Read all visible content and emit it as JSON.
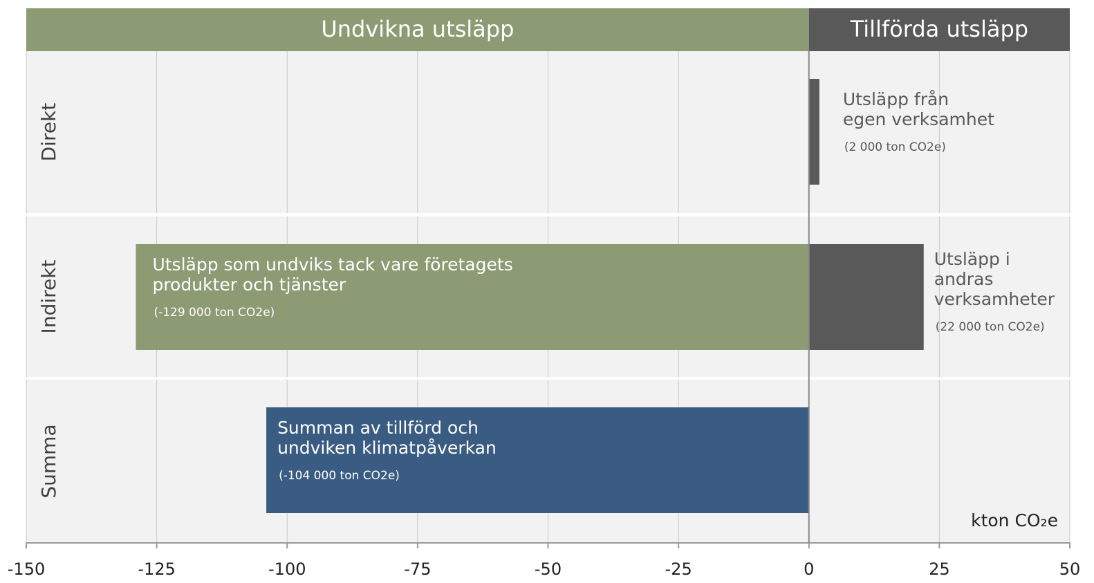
{
  "chart_data": {
    "type": "bar",
    "orientation": "horizontal",
    "headers": [
      "Undvikna utsläpp",
      "Tillförda utsläpp"
    ],
    "header_colors": [
      "#8c9b73",
      "#595959"
    ],
    "categories": [
      "Direkt",
      "Indirekt",
      "Summa"
    ],
    "series": [
      {
        "color": "#595959",
        "values": [
          2,
          22,
          null
        ],
        "annotations": [
          [
            "Utsläpp från",
            "egen verksamhet"
          ],
          [
            "Utsläpp i",
            "andras",
            "verksamheter"
          ],
          null
        ],
        "value_labels": [
          "(2 000 ton CO2e)",
          "(22 000 ton CO2e)",
          null
        ]
      },
      {
        "color": "#8c9b73",
        "values": [
          null,
          -129,
          null
        ],
        "annotations": [
          null,
          [
            "Utsläpp som undviks tack vare företagets",
            "produkter och tjänster"
          ],
          null
        ],
        "value_labels": [
          null,
          "(-129 000 ton CO2e)",
          null
        ]
      },
      {
        "color": "#3a5c82",
        "values": [
          null,
          null,
          -104
        ],
        "annotations": [
          null,
          null,
          [
            "Summan av tillförd och",
            "undviken klimatpåverkan"
          ]
        ],
        "value_labels": [
          null,
          null,
          "(-104 000 ton CO2e)"
        ]
      }
    ],
    "xlabel": "kton CO₂e",
    "xlim": [
      -150,
      50
    ],
    "xticks": [
      -150,
      -125,
      -100,
      -75,
      -50,
      -25,
      0,
      25,
      50
    ],
    "grid": true
  }
}
